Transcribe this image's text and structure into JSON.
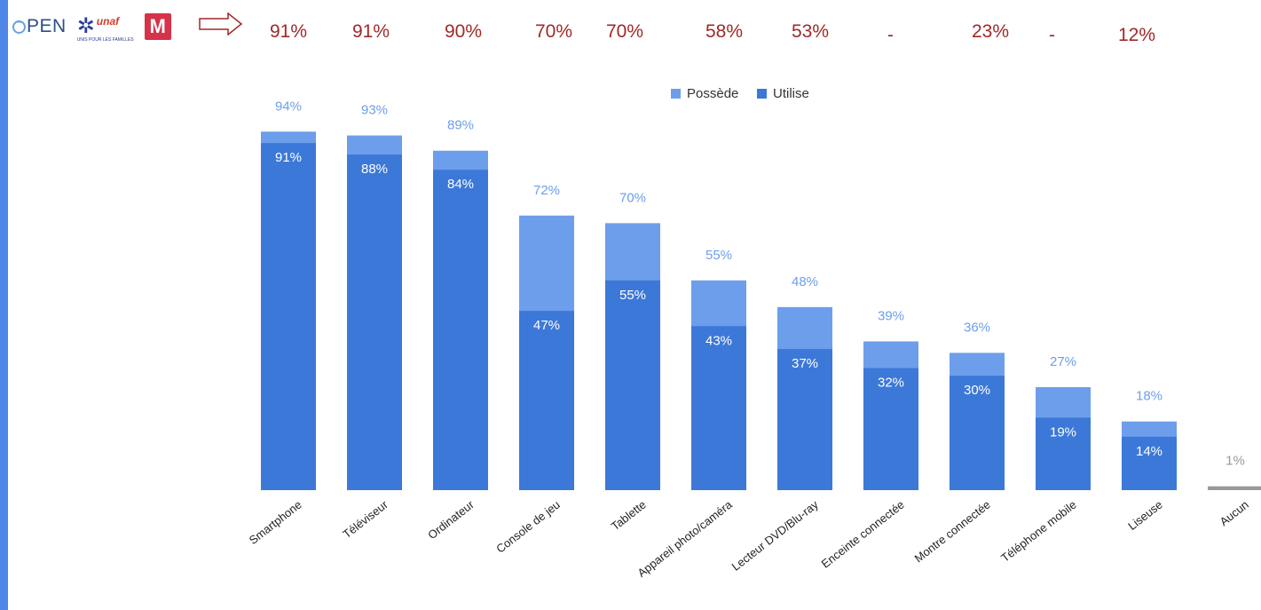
{
  "header": {
    "logos": {
      "open": "PEN",
      "unaf_word": "unaf",
      "unaf_tagline": "UNIS POUR LES FAMILLES",
      "m_letter": "M"
    },
    "arrow_icon": "right-arrow-icon",
    "top_values": [
      "91%",
      "91%",
      "90%",
      "70%",
      "70%",
      "58%",
      "53%",
      "-",
      "23%",
      "-",
      "12%"
    ]
  },
  "colors": {
    "possede": "#6d9eeb",
    "utilise": "#3c78d8",
    "aucun": "#999999",
    "possede_label": "#6d9eeb",
    "utilise_label": "#ffffff",
    "top_values": "#a02929",
    "left_rule": "#4f86e8"
  },
  "chart_data": {
    "type": "bar",
    "stacked": true,
    "title": "",
    "xlabel": "",
    "ylabel": "",
    "legend_position": "top",
    "grid": false,
    "categories": [
      "Smartphone",
      "Téléviseur",
      "Ordinateur",
      "Console de jeu",
      "Tablette",
      "Appareil photo/caméra",
      "Lecteur DVD/Blu-ray",
      "Enceinte connectée",
      "Montre connectée",
      "Téléphone mobile",
      "Liseuse",
      "Aucun"
    ],
    "series": [
      {
        "name": "Possède",
        "values": [
          94,
          93,
          89,
          72,
          70,
          55,
          48,
          39,
          36,
          27,
          18,
          1
        ],
        "labels": [
          "94%",
          "93%",
          "89%",
          "72%",
          "70%",
          "55%",
          "48%",
          "39%",
          "36%",
          "27%",
          "18%",
          "1%"
        ]
      },
      {
        "name": "Utilise",
        "values": [
          91,
          88,
          84,
          47,
          55,
          43,
          37,
          32,
          30,
          19,
          14,
          null
        ],
        "labels": [
          "91%",
          "88%",
          "84%",
          "47%",
          "55%",
          "43%",
          "37%",
          "32%",
          "30%",
          "19%",
          "14%",
          ""
        ]
      }
    ]
  }
}
